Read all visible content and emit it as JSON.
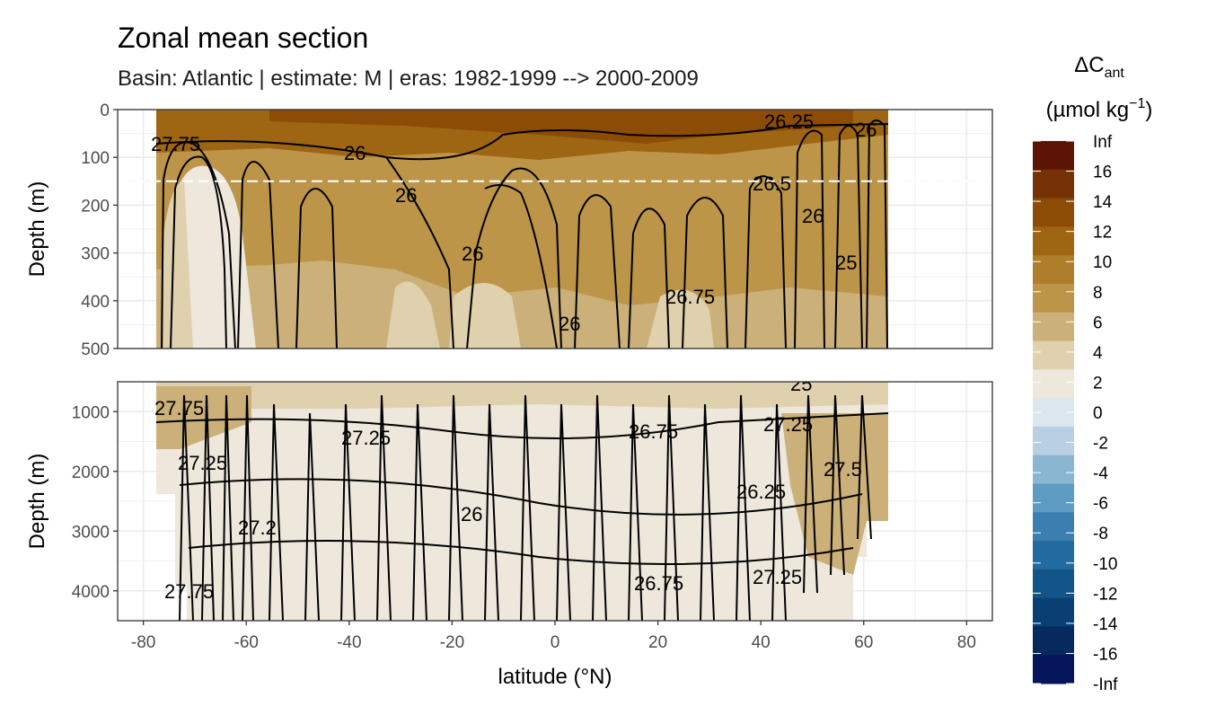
{
  "title": "Zonal mean section",
  "subtitle": "Basin: Atlantic | estimate: M  | eras: 1982-1999 --> 2000-2009",
  "chart_data": {
    "type": "heatmap",
    "xlabel": "latitude (°N)",
    "ylabel": "Depth (m)",
    "xlim": [
      -85,
      85
    ],
    "x_ticks": [
      "-80",
      "-60",
      "-40",
      "-20",
      "0",
      "20",
      "40",
      "60",
      "80"
    ],
    "grid": true,
    "legend_position": "right",
    "panels": [
      {
        "name": "upper",
        "ylim": [
          500,
          0
        ],
        "y_ticks": [
          "0",
          "100",
          "200",
          "300",
          "400",
          "500"
        ],
        "dashed_line_depth": 150
      },
      {
        "name": "lower",
        "ylim": [
          4500,
          500
        ],
        "y_ticks": [
          "1000",
          "2000",
          "3000",
          "4000"
        ]
      }
    ],
    "data_lat_range": [
      -78,
      65
    ],
    "legend": {
      "title_main": "ΔC",
      "title_sub": "ant",
      "unit_main": "(µmol kg",
      "unit_sup": "−1",
      "unit_end": ")",
      "breaks": [
        "Inf",
        "16",
        "14",
        "12",
        "10",
        "8",
        "6",
        "4",
        "2",
        "0",
        "-2",
        "-4",
        "-6",
        "-8",
        "-10",
        "-12",
        "-14",
        "-16",
        "-Inf"
      ],
      "colors": [
        "#5c1504",
        "#753207",
        "#8c4c06",
        "#9e6512",
        "#ae7e2a",
        "#bc9549",
        "#cbb079",
        "#dfd0ae",
        "#ede7dc",
        "#dce6ee",
        "#b8d0e2",
        "#8bb6d2",
        "#5e9bc2",
        "#3b7fb0",
        "#226a9f",
        "#135489",
        "#0a3f74",
        "#06295e",
        "#041659"
      ]
    },
    "contour_labels_upper": [
      "27.75",
      "26",
      "26",
      "26.75",
      "26",
      "26.25",
      "26",
      "26.5",
      "26",
      "25",
      "26"
    ],
    "contour_labels_lower": [
      "27.75",
      "27.25",
      "27.2",
      "27.75",
      "26.75",
      "26",
      "26.75",
      "27.25",
      "27.25",
      "27.5",
      "27.25",
      "26.25",
      "25"
    ]
  }
}
